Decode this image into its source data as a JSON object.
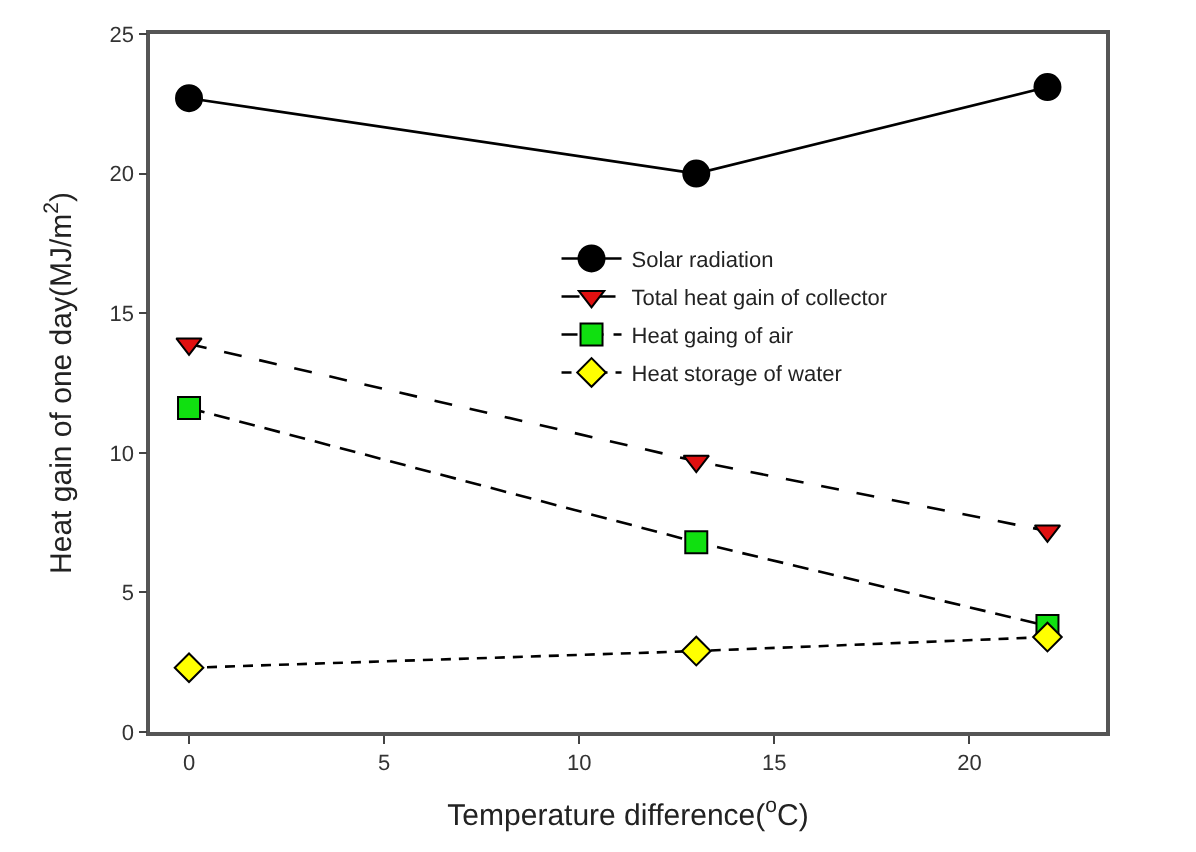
{
  "chart_data": {
    "type": "line",
    "xlabel": "Temperature difference($^{o}$C)",
    "ylabel": "Heat gain of one day(MJ/m$^{2}$)",
    "x": [
      0,
      13,
      22
    ],
    "xlim": [
      -1,
      23.5
    ],
    "xticks": [
      0,
      5,
      10,
      15,
      20
    ],
    "ylim": [
      0,
      25
    ],
    "yticks": [
      0,
      5,
      10,
      15,
      20,
      25
    ],
    "legend": "top right",
    "series": [
      {
        "name": "Solar radiation",
        "color": "#000000",
        "marker": "circle",
        "line_style": "solid",
        "values": [
          22.7,
          20.0,
          23.1
        ]
      },
      {
        "name": "Total heat gain of collector",
        "color": "#e01010",
        "marker": "triangle",
        "line_style": "dashed",
        "values": [
          13.9,
          9.7,
          7.2
        ]
      },
      {
        "name": "Heat gaing of air",
        "color": "#10e010",
        "marker": "square",
        "line_style": "dashed",
        "values": [
          11.6,
          6.8,
          3.8
        ]
      },
      {
        "name": "Heat storage of water",
        "color": "#ffff00",
        "marker": "diamond",
        "line_style": "dashed",
        "values": [
          2.3,
          2.9,
          3.4
        ]
      }
    ]
  }
}
